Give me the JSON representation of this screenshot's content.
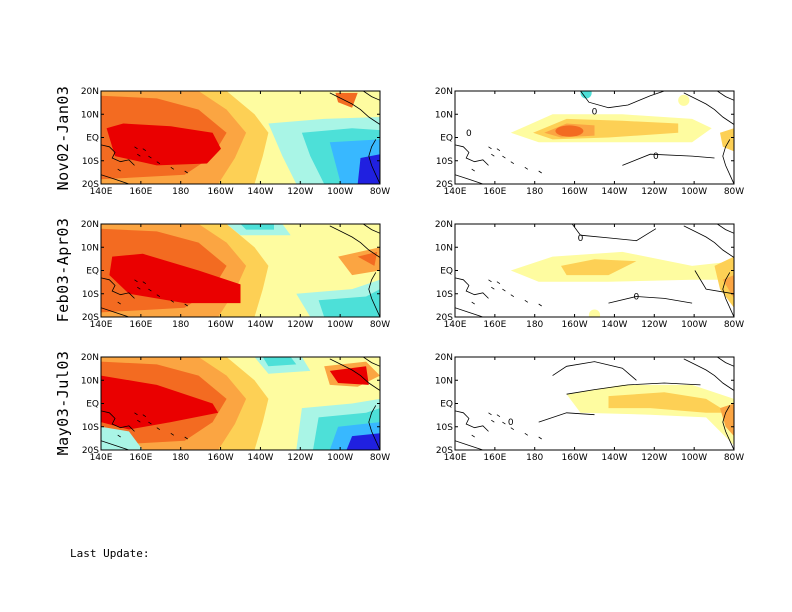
{
  "rows": [
    {
      "label": "Nov02-Jan03"
    },
    {
      "label": "Feb03-Apr03"
    },
    {
      "label": "May03-Jul03"
    }
  ],
  "axes": {
    "x_ticks": [
      "140E",
      "160E",
      "180",
      "160W",
      "140W",
      "120W",
      "100W",
      "80W"
    ],
    "y_ticks": [
      "20N",
      "10N",
      "EQ",
      "10S",
      "20S"
    ]
  },
  "contour_labels": {
    "zero": "0"
  },
  "colors": {
    "deep_red": "#ea0000",
    "orange_red": "#f36b21",
    "orange": "#fba542",
    "light_orange": "#fdd055",
    "yellow": "#fefca0",
    "light_cyan": "#a9f5e6",
    "cyan": "#4de0d8",
    "blue": "#38b8ff",
    "deep_blue": "#2020e0"
  },
  "footer": {
    "last_update": "Last Update:"
  }
}
